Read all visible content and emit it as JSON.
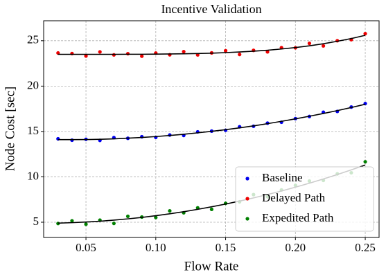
{
  "chart_data": {
    "type": "scatter",
    "title": "Incentive Validation",
    "x_label": "Flow Rate",
    "y_label": "Node Cost [sec]",
    "x": [
      0.03,
      0.04,
      0.05,
      0.06,
      0.07,
      0.08,
      0.09,
      0.1,
      0.11,
      0.12,
      0.13,
      0.14,
      0.15,
      0.16,
      0.17,
      0.18,
      0.19,
      0.2,
      0.21,
      0.22,
      0.23,
      0.24,
      0.25
    ],
    "series": [
      {
        "name": "Baseline",
        "color": "#0000ee",
        "values": [
          14.19,
          14.04,
          14.14,
          14.02,
          14.33,
          14.25,
          14.42,
          14.35,
          14.61,
          14.56,
          14.96,
          15.04,
          15.13,
          15.52,
          15.58,
          15.92,
          16.02,
          16.42,
          16.65,
          17.12,
          17.21,
          17.69,
          18.08
        ],
        "fit": [
          14.1,
          14.1,
          14.11,
          14.14,
          14.19,
          14.26,
          14.34,
          14.44,
          14.56,
          14.69,
          14.85,
          15.02,
          15.2,
          15.4,
          15.62,
          15.86,
          16.12,
          16.39,
          16.68,
          16.98,
          17.3,
          17.64,
          18.0
        ]
      },
      {
        "name": "Delayed Path",
        "color": "#ee0000",
        "values": [
          23.65,
          23.59,
          23.32,
          23.77,
          23.44,
          23.57,
          23.3,
          23.64,
          23.45,
          23.8,
          23.44,
          23.66,
          23.9,
          23.49,
          23.94,
          23.77,
          24.24,
          24.22,
          24.71,
          24.43,
          25.0,
          25.12,
          25.78
        ],
        "fit": [
          23.5,
          23.5,
          23.5,
          23.5,
          23.5,
          23.51,
          23.51,
          23.52,
          23.54,
          23.56,
          23.59,
          23.63,
          23.69,
          23.76,
          23.85,
          23.95,
          24.09,
          24.25,
          24.44,
          24.67,
          24.94,
          25.24,
          25.6
        ]
      },
      {
        "name": "Expedited Path",
        "color": "#008000",
        "values": [
          4.86,
          5.15,
          4.78,
          5.23,
          4.87,
          5.65,
          5.57,
          5.52,
          6.25,
          6.04,
          6.58,
          6.42,
          7.08,
          7.25,
          8.04,
          7.81,
          8.56,
          9.06,
          9.54,
          9.61,
          10.33,
          10.45,
          11.66
        ],
        "fit": [
          4.9,
          4.95,
          5.02,
          5.11,
          5.23,
          5.37,
          5.53,
          5.72,
          5.93,
          6.16,
          6.42,
          6.7,
          7.0,
          7.33,
          7.68,
          8.05,
          8.44,
          8.86,
          9.3,
          9.77,
          10.25,
          10.77,
          11.3
        ]
      }
    ],
    "fit_color": "#000000",
    "xlim": [
      0.0197,
      0.2599
    ],
    "ylim": [
      3.32,
      27.2
    ],
    "xticks": [
      0.05,
      {
        "value": 0.1,
        "label": "0.10"
      },
      0.15,
      {
        "value": 0.2,
        "label": "0.20"
      },
      0.25
    ],
    "yticks": [
      5,
      10,
      15,
      20,
      25
    ],
    "grid": true,
    "legend": "lower right"
  }
}
